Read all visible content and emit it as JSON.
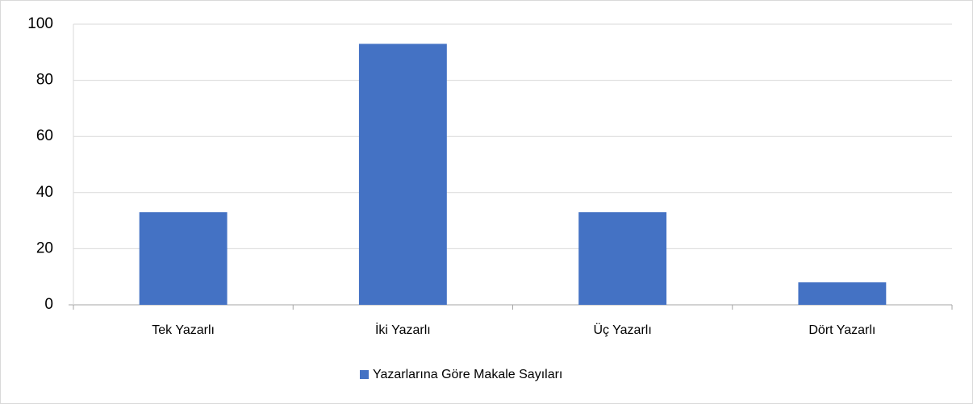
{
  "chart_data": {
    "type": "bar",
    "categories": [
      "Tek Yazarlı",
      "İki Yazarlı",
      "Üç Yazarlı",
      "Dört Yazarlı"
    ],
    "series": [
      {
        "name": "Yazarlarına Göre Makale Sayıları",
        "color": "#4472c4",
        "values": [
          33,
          93,
          33,
          8
        ]
      }
    ],
    "ylim": [
      0,
      100
    ],
    "yticks": [
      0,
      20,
      40,
      60,
      80,
      100
    ],
    "grid": true,
    "legend": "bottom"
  }
}
